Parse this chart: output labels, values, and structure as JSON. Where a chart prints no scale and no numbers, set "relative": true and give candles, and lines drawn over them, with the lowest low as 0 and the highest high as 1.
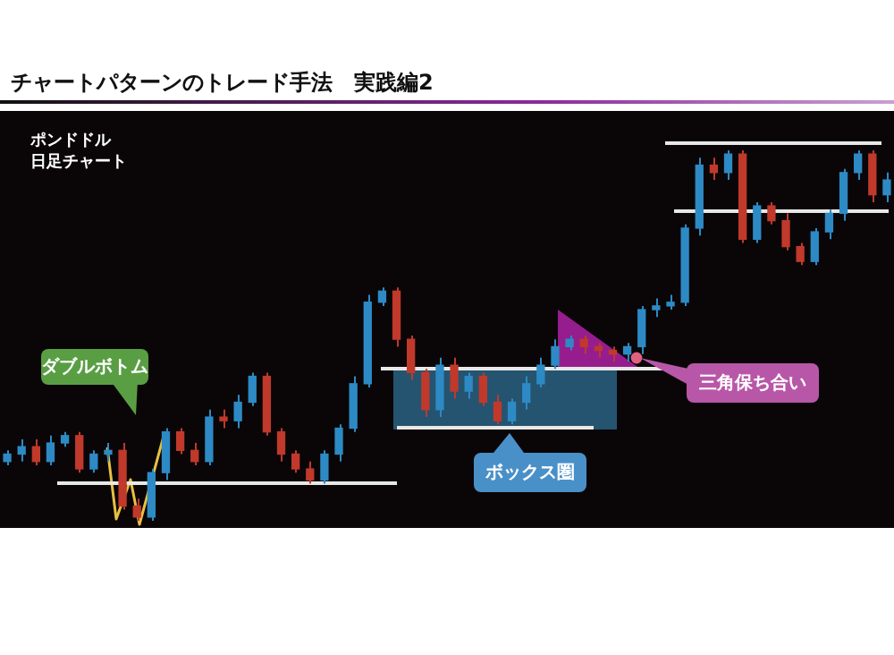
{
  "chart_data": {
    "type": "candlestick",
    "title": "チャートパターンのトレード手法　実践編2",
    "relative": true,
    "annotations": [
      "ポンドドル",
      "日足チャート",
      "ダブルボトム",
      "ボックス圏",
      "三角保ち合い"
    ],
    "categories": [
      null,
      null,
      null,
      null,
      null,
      null,
      null,
      null,
      null,
      null,
      null,
      null,
      null,
      null,
      null,
      null,
      null,
      null,
      null,
      null,
      null,
      null,
      null,
      null,
      null,
      null,
      null,
      null,
      null,
      null,
      null,
      null,
      null,
      null,
      null,
      null,
      null,
      null,
      null,
      null,
      null,
      null,
      null,
      null,
      null,
      null,
      null,
      null,
      null,
      null,
      null,
      null,
      null,
      null,
      null,
      null,
      null,
      null,
      null,
      null,
      null,
      null
    ],
    "ohlc": [
      [
        0.16,
        0.19,
        0.15,
        0.18
      ],
      [
        0.18,
        0.22,
        0.16,
        0.2
      ],
      [
        0.2,
        0.22,
        0.15,
        0.16
      ],
      [
        0.16,
        0.23,
        0.15,
        0.21
      ],
      [
        0.21,
        0.24,
        0.2,
        0.23
      ],
      [
        0.23,
        0.24,
        0.13,
        0.14
      ],
      [
        0.14,
        0.19,
        0.13,
        0.18
      ],
      [
        0.18,
        0.21,
        0.16,
        0.19
      ],
      [
        0.19,
        0.21,
        0.03,
        0.04
      ],
      [
        0.04,
        0.06,
        0,
        0.01
      ],
      [
        0.01,
        0.14,
        0,
        0.13
      ],
      [
        0.13,
        0.25,
        0.11,
        0.24
      ],
      [
        0.24,
        0.25,
        0.18,
        0.19
      ],
      [
        0.19,
        0.21,
        0.15,
        0.16
      ],
      [
        0.16,
        0.3,
        0.15,
        0.28
      ],
      [
        0.28,
        0.3,
        0.25,
        0.27
      ],
      [
        0.27,
        0.34,
        0.25,
        0.32
      ],
      [
        0.32,
        0.4,
        0.31,
        0.39
      ],
      [
        0.39,
        0.4,
        0.23,
        0.24
      ],
      [
        0.24,
        0.25,
        0.16,
        0.18
      ],
      [
        0.18,
        0.19,
        0.13,
        0.14
      ],
      [
        0.14,
        0.16,
        0.1,
        0.11
      ],
      [
        0.11,
        0.19,
        0.1,
        0.18
      ],
      [
        0.18,
        0.26,
        0.16,
        0.25
      ],
      [
        0.25,
        0.39,
        0.24,
        0.37
      ],
      [
        0.37,
        0.61,
        0.36,
        0.59
      ],
      [
        0.59,
        0.63,
        0.58,
        0.62
      ],
      [
        0.62,
        0.63,
        0.47,
        0.49
      ],
      [
        0.49,
        0.5,
        0.38,
        0.4
      ],
      [
        0.4,
        0.41,
        0.28,
        0.3
      ],
      [
        0.3,
        0.44,
        0.28,
        0.42
      ],
      [
        0.42,
        0.44,
        0.33,
        0.35
      ],
      [
        0.35,
        0.4,
        0.33,
        0.39
      ],
      [
        0.39,
        0.4,
        0.31,
        0.32
      ],
      [
        0.32,
        0.34,
        0.26,
        0.27
      ],
      [
        0.27,
        0.33,
        0.26,
        0.32
      ],
      [
        0.32,
        0.39,
        0.3,
        0.37
      ],
      [
        0.37,
        0.44,
        0.36,
        0.42
      ],
      [
        0.42,
        0.49,
        0.41,
        0.47
      ],
      [
        0.47,
        0.5,
        0.46,
        0.49
      ],
      [
        0.49,
        0.5,
        0.45,
        0.47
      ],
      [
        0.47,
        0.48,
        0.44,
        0.46
      ],
      [
        0.46,
        0.47,
        0.43,
        0.45
      ],
      [
        0.45,
        0.48,
        0.43,
        0.47
      ],
      [
        0.47,
        0.58,
        0.45,
        0.57
      ],
      [
        0.57,
        0.6,
        0.55,
        0.58
      ],
      [
        0.58,
        0.61,
        0.57,
        0.59
      ],
      [
        0.59,
        0.8,
        0.58,
        0.79
      ],
      [
        0.79,
        0.98,
        0.77,
        0.96
      ],
      [
        0.96,
        0.98,
        0.92,
        0.94
      ],
      [
        0.94,
        1,
        0.92,
        0.99
      ],
      [
        0.99,
        1,
        0.75,
        0.76
      ],
      [
        0.76,
        0.86,
        0.75,
        0.85
      ],
      [
        0.85,
        0.86,
        0.8,
        0.81
      ],
      [
        0.81,
        0.83,
        0.73,
        0.74
      ],
      [
        0.74,
        0.75,
        0.69,
        0.7
      ],
      [
        0.7,
        0.79,
        0.69,
        0.78
      ],
      [
        0.78,
        0.84,
        0.76,
        0.83
      ],
      [
        0.83,
        0.95,
        0.81,
        0.94
      ],
      [
        0.94,
        1,
        0.92,
        0.99
      ],
      [
        0.99,
        1,
        0.86,
        0.88
      ],
      [
        0.88,
        0.94,
        0.86,
        0.92
      ]
    ],
    "colors": [
      "#2d8ac4",
      "#2d8ac4",
      "#c0392b",
      "#2d8ac4",
      "#2d8ac4",
      "#c0392b",
      "#2d8ac4",
      "#2d8ac4",
      "#c0392b",
      "#c0392b",
      "#2d8ac4",
      "#2d8ac4",
      "#c0392b",
      "#c0392b",
      "#2d8ac4",
      "#c0392b",
      "#2d8ac4",
      "#2d8ac4",
      "#c0392b",
      "#c0392b",
      "#c0392b",
      "#c0392b",
      "#2d8ac4",
      "#2d8ac4",
      "#2d8ac4",
      "#2d8ac4",
      "#2d8ac4",
      "#c0392b",
      "#c0392b",
      "#c0392b",
      "#2d8ac4",
      "#c0392b",
      "#2d8ac4",
      "#c0392b",
      "#c0392b",
      "#2d8ac4",
      "#2d8ac4",
      "#2d8ac4",
      "#2d8ac4",
      "#2d8ac4",
      "#c0392b",
      "#c0392b",
      "#c0392b",
      "#2d8ac4",
      "#2d8ac4",
      "#2d8ac4",
      "#2d8ac4",
      "#2d8ac4",
      "#2d8ac4",
      "#c0392b",
      "#2d8ac4",
      "#c0392b",
      "#2d8ac4",
      "#c0392b",
      "#c0392b",
      "#c0392b",
      "#2d8ac4",
      "#2d8ac4",
      "#2d8ac4",
      "#2d8ac4",
      "#c0392b",
      "#2d8ac4"
    ]
  }
}
